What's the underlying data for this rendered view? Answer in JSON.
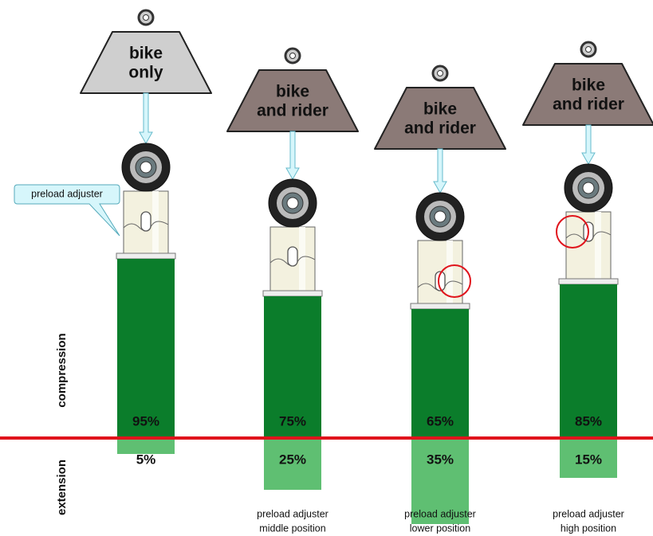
{
  "callout": "preload adjuster",
  "side_labels": {
    "compression": "compression",
    "extension": "extension"
  },
  "columns": [
    {
      "weight": [
        "bike",
        "only"
      ],
      "compression": "95%",
      "extension": "5%"
    },
    {
      "weight": [
        "bike",
        "and rider"
      ],
      "compression": "75%",
      "extension": "25%",
      "caption": [
        "preload adjuster",
        "middle position"
      ]
    },
    {
      "weight": [
        "bike",
        "and rider"
      ],
      "compression": "65%",
      "extension": "35%",
      "caption": [
        "preload adjuster",
        "lower position"
      ]
    },
    {
      "weight": [
        "bike",
        "and rider"
      ],
      "compression": "85%",
      "extension": "15%",
      "caption": [
        "preload adjuster",
        "high position"
      ]
    }
  ]
}
